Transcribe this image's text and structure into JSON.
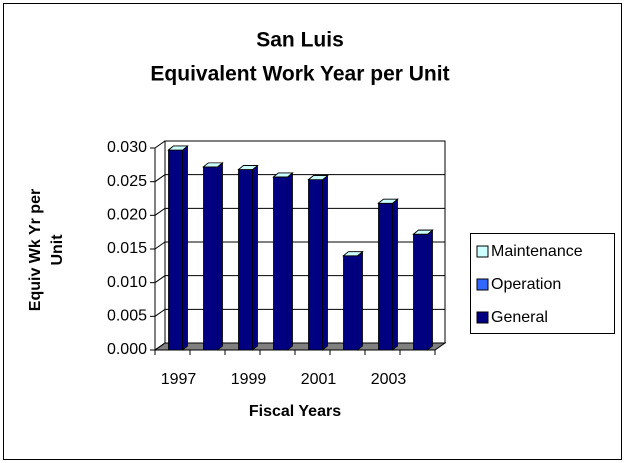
{
  "chart_data": {
    "type": "bar3d_stacked",
    "title": "San Luis",
    "subtitle": "Equivalent Work Year per Unit",
    "ylabel": [
      "Equiv Wk Yr per",
      "Unit"
    ],
    "xlabel": "Fiscal Years",
    "categories": [
      "1997",
      null,
      "1999",
      null,
      "2001",
      null,
      "2003",
      null
    ],
    "series": [
      {
        "name": "Maintenance",
        "color": "#ccffff",
        "values": [
          0,
          0,
          0,
          0,
          0,
          0,
          0,
          0
        ]
      },
      {
        "name": "Operation",
        "color": "#3366ff",
        "values": [
          0,
          0,
          0,
          0,
          0,
          0,
          0,
          0
        ]
      },
      {
        "name": "General",
        "color": "#000080",
        "values": [
          0.0297,
          0.0272,
          0.0268,
          0.0257,
          0.0253,
          0.014,
          0.0218,
          0.0172
        ]
      }
    ],
    "ylim": [
      0,
      0.03
    ],
    "yticks": [
      {
        "value": 0,
        "label": "0.000"
      },
      {
        "value": 0.005,
        "label": "0.005"
      },
      {
        "value": 0.01,
        "label": "0.010"
      },
      {
        "value": 0.015,
        "label": "0.015"
      },
      {
        "value": 0.02,
        "label": "0.020"
      },
      {
        "value": 0.025,
        "label": "0.025"
      },
      {
        "value": 0.03,
        "label": "0.030"
      }
    ],
    "grid": true,
    "legend": "right"
  }
}
